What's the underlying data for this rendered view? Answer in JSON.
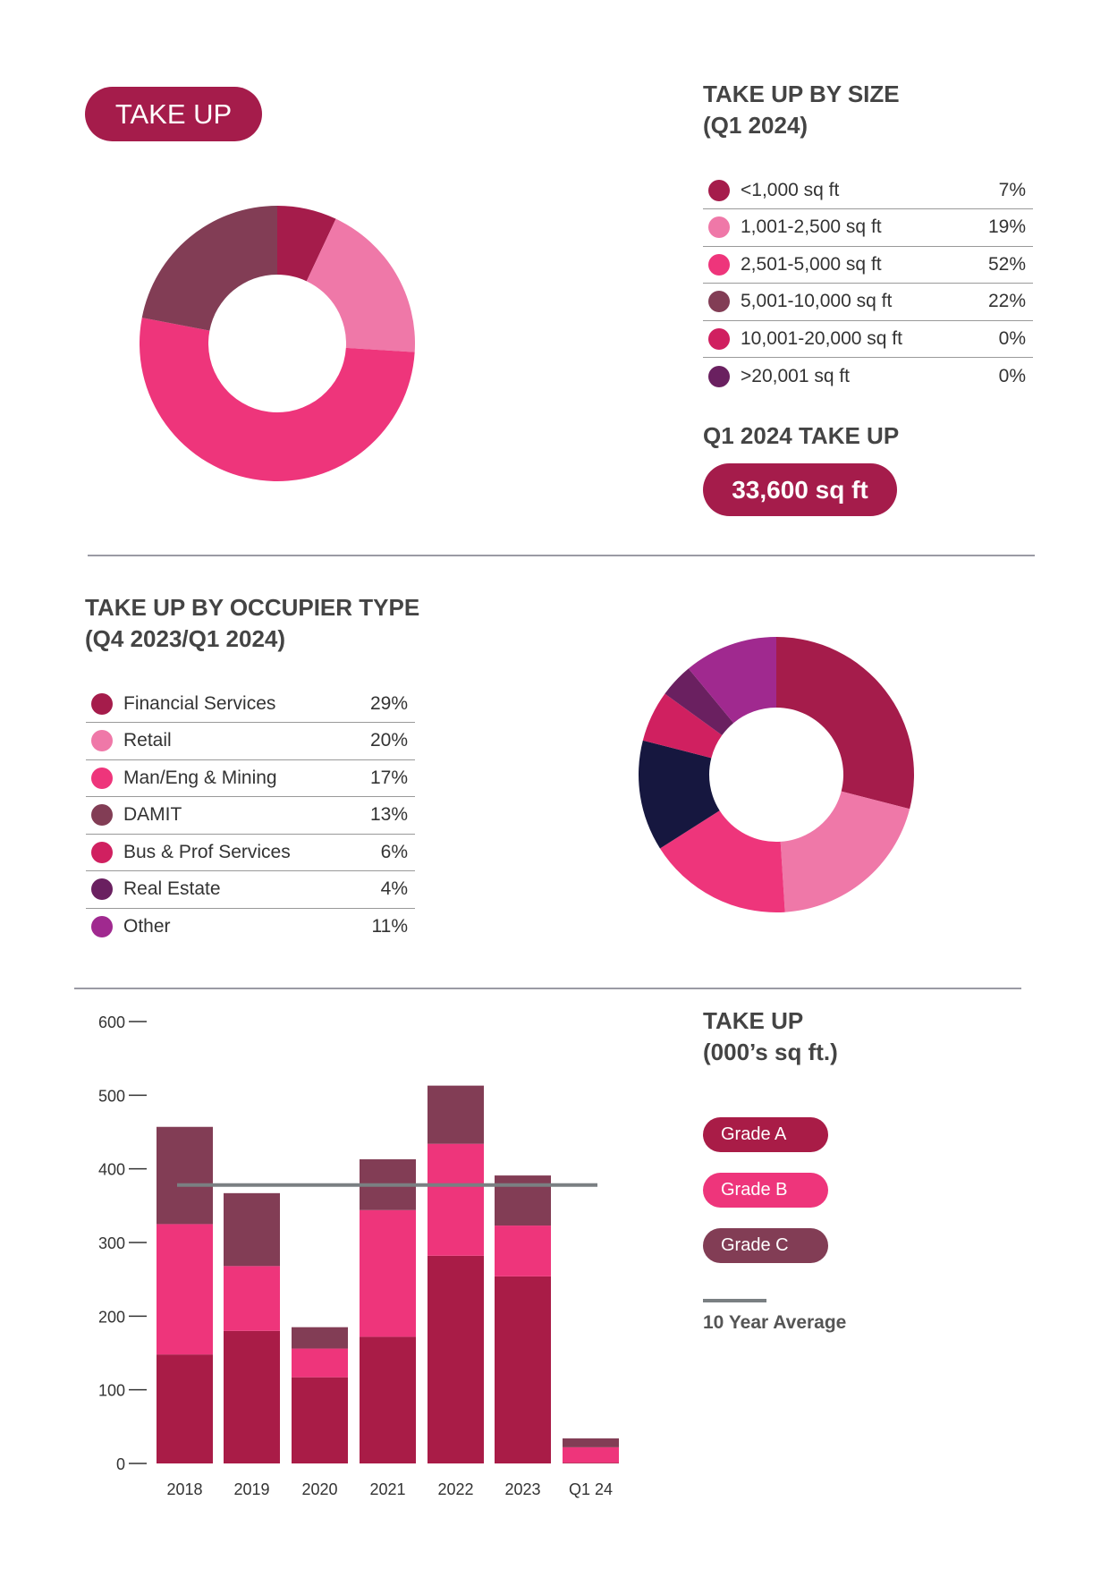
{
  "header": {
    "badge": "TAKE UP"
  },
  "size_section": {
    "title_line1": "TAKE UP BY SIZE",
    "title_line2": "(Q1 2024)",
    "total_label": "Q1 2024 TAKE UP",
    "total_value": "33,600 sq ft"
  },
  "occupier_section": {
    "title_line1": "TAKE UP BY OCCUPIER TYPE",
    "title_line2": "(Q4 2023/Q1 2024)"
  },
  "bar_section": {
    "title_line1": "TAKE UP",
    "title_line2": "(000’s sq ft.)"
  },
  "chart_data": [
    {
      "type": "pie",
      "subtype": "donut",
      "title": "TAKE UP BY SIZE (Q1 2024)",
      "categories": [
        "<1,000 sq ft",
        "1,001-2,500 sq ft",
        "2,501-5,000 sq ft",
        "5,001-10,000 sq ft",
        "10,001-20,000 sq ft",
        ">20,001 sq ft"
      ],
      "values": [
        7,
        19,
        52,
        22,
        0,
        0
      ],
      "labels": [
        "7%",
        "19%",
        "52%",
        "22%",
        "0%",
        "0%"
      ],
      "colors": [
        "#a51c4b",
        "#ef78a8",
        "#ee357b",
        "#823d55",
        "#d02060",
        "#6a2060"
      ]
    },
    {
      "type": "pie",
      "subtype": "donut",
      "title": "TAKE UP BY OCCUPIER TYPE (Q4 2023/Q1 2024)",
      "categories": [
        "Financial Services",
        "Retail",
        "Man/Eng & Mining",
        "DAMIT",
        "Bus & Prof Services",
        "Real Estate",
        "Other"
      ],
      "values": [
        29,
        20,
        17,
        13,
        6,
        4,
        11
      ],
      "labels": [
        "29%",
        "20%",
        "17%",
        "13%",
        "6%",
        "4%",
        "11%"
      ],
      "colors": [
        "#a51c4b",
        "#ef78a8",
        "#ee357b",
        "#823d55",
        "#d02060",
        "#6a2060",
        "#a0298f"
      ],
      "slice_colors": [
        "#a51c4b",
        "#ef78a8",
        "#ee357b",
        "#16173f",
        "#d02060",
        "#6a2060",
        "#a0298f"
      ]
    },
    {
      "type": "bar",
      "stacked": true,
      "title": "TAKE UP (000’s sq ft.)",
      "categories": [
        "2018",
        "2019",
        "2020",
        "2021",
        "2022",
        "2023",
        "Q1 24"
      ],
      "series": [
        {
          "name": "Grade A",
          "color": "#a91c47",
          "values": [
            148,
            180,
            117,
            172,
            282,
            254,
            1
          ]
        },
        {
          "name": "Grade B",
          "color": "#ee357b",
          "values": [
            177,
            88,
            39,
            172,
            152,
            69,
            21
          ]
        },
        {
          "name": "Grade C",
          "color": "#823d55",
          "values": [
            132,
            99,
            29,
            69,
            79,
            68,
            12
          ]
        }
      ],
      "reference_line": {
        "name": "10 Year Average",
        "value": 378,
        "color": "#7a7f82"
      },
      "ylim": [
        0,
        600
      ],
      "yticks": [
        0,
        100,
        200,
        300,
        400,
        500,
        600
      ],
      "grid": false,
      "legend": "right"
    }
  ]
}
